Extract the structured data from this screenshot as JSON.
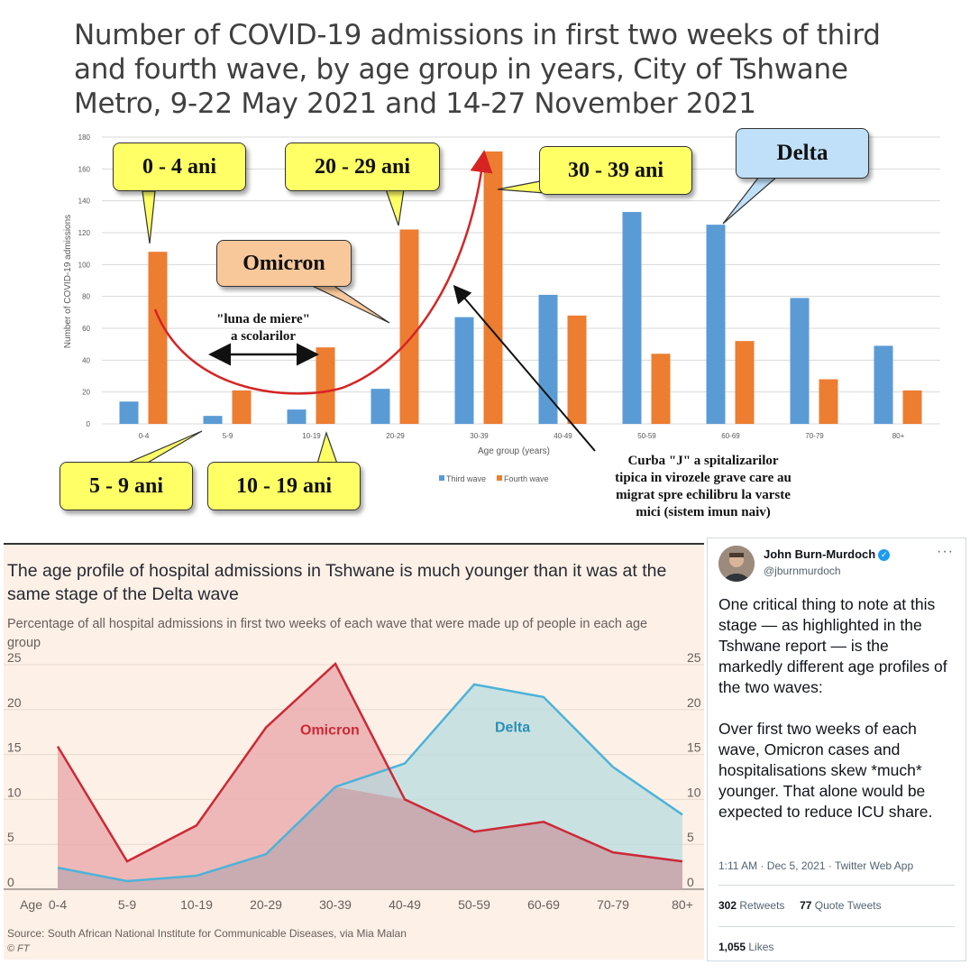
{
  "top": {
    "title": "Number of COVID-19 admissions in first two weeks of third and fourth wave, by age group in years, City of Tshwane Metro, 9-22 May 2021 and 14-27 November 2021",
    "callouts": {
      "c04": "0 - 4 ani",
      "c2029": "20 - 29 ani",
      "c3039": "30 - 39 ani",
      "c59": "5 - 9 ani",
      "c1019": "10 - 19 ani",
      "delta": "Delta",
      "omicron": "Omicron"
    },
    "honeymoon": [
      "\"luna de miere\"",
      "a scolarilor"
    ],
    "j_note": [
      "Curba \"J\" a  spitalizarilor",
      "tipica in virozele grave care au",
      "migrat spre echilibru la varste",
      "mici (sistem imun naiv)"
    ],
    "colors": {
      "third": "#5b9bd5",
      "fourth": "#ed7d31",
      "curve": "#d62424",
      "yellow": "#ffff66",
      "blue_callout": "#bfe0f8",
      "orange_callout": "#f8c89a"
    }
  },
  "bottom": {
    "title": "The age profile of hospital admissions in Tshwane is much younger than it was at the same stage of the Delta wave",
    "subtitle": "Percentage of all hospital admissions in first two weeks of each wave that were made up of people in each age group",
    "series_labels": {
      "omicron": "Omicron",
      "delta": "Delta"
    },
    "source": "Source: South African National Institute for Communicable Diseases, via Mia Malan",
    "brand": "© FT",
    "colors": {
      "omicron_line": "#cc2936",
      "omicron_fill": "#e8a5a8",
      "delta_line": "#4cb3d8",
      "delta_fill": "#b3dadf",
      "overlap": "#c9a4ab"
    }
  },
  "tweet": {
    "name": "John Burn-Murdoch",
    "handle": "@jburnmurdoch",
    "more": "···",
    "para1": "One critical thing to note at this stage — as highlighted in the Tshwane report — is the markedly different age profiles of the two waves:",
    "para2": "Over first two weeks of each wave, Omicron cases and hospitalisations skew *much* younger. That alone would be expected to reduce ICU share.",
    "meta": "1:11 AM · Dec 5, 2021 · Twitter Web App",
    "retweets_num": "302",
    "retweets_label": "Retweets",
    "quotes_num": "77",
    "quotes_label": "Quote Tweets",
    "likes_num": "1,055",
    "likes_label": "Likes"
  },
  "chart_data": [
    {
      "type": "bar",
      "title": "",
      "categories": [
        "0-4",
        "5-9",
        "10-19",
        "20-29",
        "30-39",
        "40-49",
        "50-59",
        "60-69",
        "70-79",
        "80+"
      ],
      "series": [
        {
          "name": "Third wave",
          "values": [
            14,
            5,
            9,
            22,
            67,
            81,
            133,
            125,
            79,
            49
          ]
        },
        {
          "name": "Fourth wave",
          "values": [
            108,
            21,
            48,
            122,
            171,
            68,
            44,
            52,
            28,
            21
          ]
        }
      ],
      "xlabel": "Age group (years)",
      "ylabel": "Number of COVID-19 admissions",
      "ylim": [
        0,
        180
      ],
      "yticks": [
        "0",
        "20",
        "40",
        "60",
        "80",
        "100",
        "120",
        "140",
        "160",
        "180"
      ],
      "legend": "bottom"
    },
    {
      "type": "area",
      "categories": [
        "0-4",
        "5-9",
        "10-19",
        "20-29",
        "30-39",
        "40-49",
        "50-59",
        "60-69",
        "70-79",
        "80+"
      ],
      "x_prefix": "Age",
      "series": [
        {
          "name": "Omicron",
          "values": [
            15.9,
            3.1,
            7.1,
            18.0,
            25.1,
            10.0,
            6.4,
            7.5,
            4.1,
            3.1
          ]
        },
        {
          "name": "Delta",
          "values": [
            2.4,
            0.9,
            1.5,
            3.9,
            11.4,
            14.0,
            22.8,
            21.4,
            13.6,
            8.3
          ]
        }
      ],
      "ylim": [
        0,
        25
      ],
      "yticks": [
        "0",
        "5",
        "10",
        "15",
        "20",
        "25"
      ],
      "grid": true
    }
  ]
}
